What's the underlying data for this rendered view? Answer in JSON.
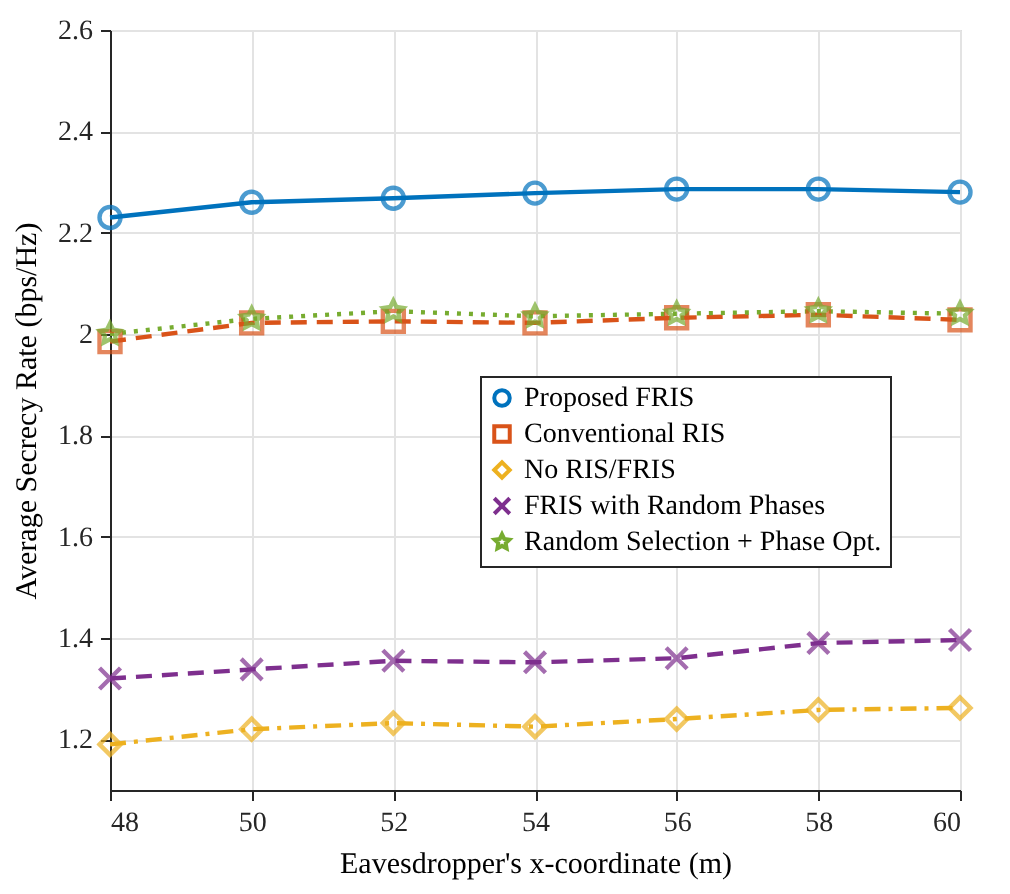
{
  "chart_data": {
    "type": "line",
    "xlabel": "Eavesdropper's x-coordinate (m)",
    "ylabel": "Average Secrecy Rate (bps/Hz)",
    "x": [
      48,
      50,
      52,
      54,
      56,
      58,
      60
    ],
    "series": [
      {
        "name": "Proposed FRIS",
        "color": "#0072bd",
        "marker": "circle",
        "line_style": "solid",
        "values": [
          2.23,
          2.26,
          2.268,
          2.278,
          2.286,
          2.286,
          2.28
        ]
      },
      {
        "name": "Conventional RIS",
        "color": "#d95319",
        "marker": "square",
        "line_style": "dashed",
        "values": [
          1.985,
          2.022,
          2.025,
          2.022,
          2.032,
          2.038,
          2.028
        ]
      },
      {
        "name": "No RIS/FRIS",
        "color": "#edb120",
        "marker": "diamond",
        "line_style": "dashdot",
        "values": [
          1.19,
          1.22,
          1.232,
          1.225,
          1.24,
          1.258,
          1.262
        ]
      },
      {
        "name": "FRIS with Random Phases",
        "color": "#7e2f8e",
        "marker": "cross",
        "line_style": "dashed",
        "values": [
          1.32,
          1.338,
          1.355,
          1.352,
          1.36,
          1.39,
          1.396
        ]
      },
      {
        "name": "Random Selection + Phase Opt.",
        "color": "#77ac30",
        "marker": "star",
        "line_style": "dotted",
        "values": [
          2.0,
          2.03,
          2.045,
          2.035,
          2.04,
          2.045,
          2.04
        ]
      }
    ],
    "xlim": [
      48,
      60
    ],
    "xticks": [
      48,
      50,
      52,
      54,
      56,
      58,
      60
    ],
    "ylim": [
      1.1,
      2.6
    ],
    "yticks": [
      1.2,
      1.4,
      1.6,
      1.8,
      2,
      2.2,
      2.4,
      2.6
    ],
    "grid": true,
    "legend": "right"
  }
}
